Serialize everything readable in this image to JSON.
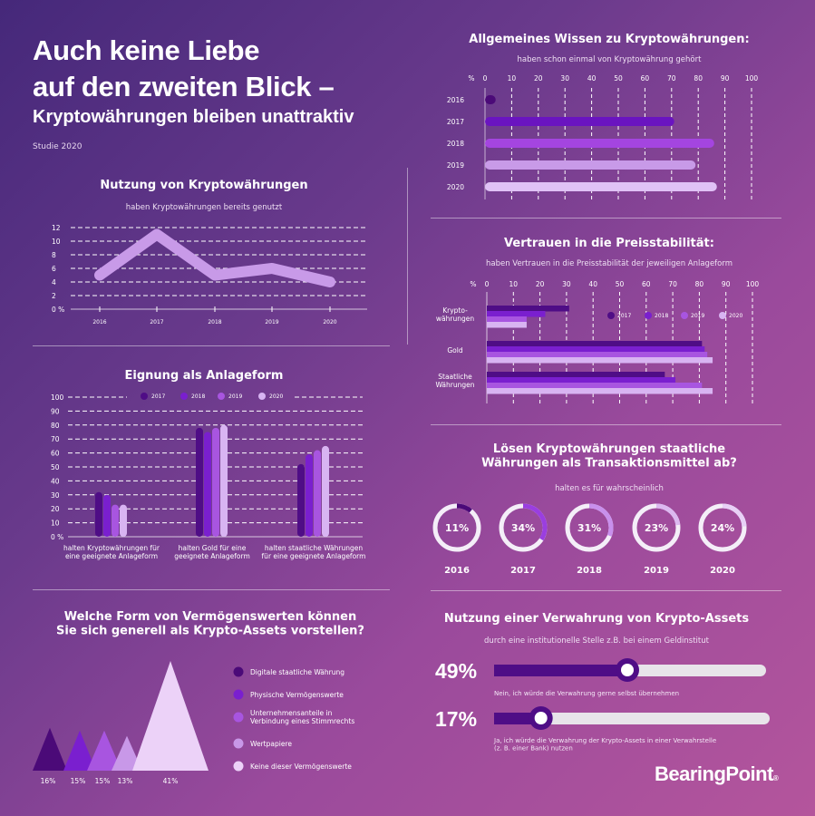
{
  "header": {
    "title_line1": "Auch keine Liebe",
    "title_line2": "auf den zweiten Blick –",
    "subtitle": "Kryptowährungen bleiben unattraktiv",
    "study": "Studie 2020"
  },
  "colors": {
    "y2016": "#4b0a78",
    "y2017": "#4f0d86",
    "y2018": "#7a1fcf",
    "y2019": "#a855e0",
    "y2020": "#d8b4f2",
    "line": "#c89ae8",
    "white": "#f4eef8"
  },
  "brand": {
    "logo": "BearingPoint"
  },
  "chart_data": [
    {
      "id": "wissen",
      "type": "bar",
      "orientation": "horizontal",
      "title": "Allgemeines Wissen zu Kryptowährungen:",
      "subtitle": "haben schon einmal von Kryptowährung gehört",
      "unit": "%",
      "categories": [
        "2016",
        "2017",
        "2018",
        "2019",
        "2020"
      ],
      "values": [
        4,
        71,
        86,
        79,
        87
      ],
      "xlim": [
        0,
        100
      ],
      "ticks": [
        0,
        10,
        20,
        30,
        40,
        50,
        60,
        70,
        80,
        90,
        100
      ],
      "grid": true
    },
    {
      "id": "vertrauen",
      "type": "bar",
      "orientation": "horizontal",
      "title": "Vertrauen in die Preisstabilität:",
      "subtitle": "haben Vertrauen in die Preisstabilität der jeweiligen Anlageform",
      "unit": "%",
      "categories": [
        "Krypto-\nwährungen",
        "Gold",
        "Staatliche\nWährungen"
      ],
      "series": [
        {
          "name": "2017",
          "values": [
            31,
            81,
            67
          ]
        },
        {
          "name": "2018",
          "values": [
            22,
            82,
            71
          ]
        },
        {
          "name": "2019",
          "values": [
            15,
            83,
            81
          ]
        },
        {
          "name": "2020",
          "values": [
            15,
            85,
            85
          ]
        }
      ],
      "xlim": [
        0,
        100
      ],
      "ticks": [
        0,
        10,
        20,
        30,
        40,
        50,
        60,
        70,
        80,
        90,
        100
      ],
      "legend": "top-right",
      "grid": true
    },
    {
      "id": "nutzung",
      "type": "line",
      "title": "Nutzung von Kryptowährungen",
      "subtitle": "haben Kryptowährungen bereits genutzt",
      "x": [
        "2016",
        "2017",
        "2018",
        "2019",
        "2020"
      ],
      "values": [
        5,
        11,
        5,
        6,
        4
      ],
      "ylim": [
        0,
        12
      ],
      "yticks": [
        "0 %",
        "2",
        "4",
        "6",
        "8",
        "10",
        "12"
      ],
      "grid": true
    },
    {
      "id": "eignung",
      "type": "bar",
      "title": "Eignung als Anlageform",
      "categories": [
        "halten Kryptowährungen für\neine geeignete Anlageform",
        "halten Gold für eine\ngeeignete Anlageform",
        "halten staatliche Währungen\nfür eine geeignete Anlageform"
      ],
      "series": [
        {
          "name": "2017",
          "values": [
            32,
            78,
            52
          ]
        },
        {
          "name": "2018",
          "values": [
            30,
            75,
            59
          ]
        },
        {
          "name": "2019",
          "values": [
            23,
            78,
            62
          ]
        },
        {
          "name": "2020",
          "values": [
            23,
            80,
            65
          ]
        }
      ],
      "ylim": [
        0,
        100
      ],
      "yticks": [
        "0 %",
        "10",
        "20",
        "30",
        "40",
        "50",
        "60",
        "70",
        "80",
        "90",
        "100"
      ],
      "legend": "top",
      "grid": true
    },
    {
      "id": "transaktion",
      "type": "pie",
      "variant": "donut",
      "title": "Lösen Kryptowährungen staatliche\nWährungen als Transaktionsmittel ab?",
      "subtitle": "halten es für wahrscheinlich",
      "categories": [
        "2016",
        "2017",
        "2018",
        "2019",
        "2020"
      ],
      "values": [
        11,
        34,
        31,
        23,
        24
      ],
      "labels": [
        "11%",
        "34%",
        "31%",
        "23%",
        "24%"
      ]
    },
    {
      "id": "assets",
      "type": "bar",
      "variant": "triangles",
      "title": "Welche Form von Vermögenswerten können\nSie sich generell als Krypto-Assets vorstellen?",
      "categories": [
        "Digitale staatliche Währung",
        "Physische Vermögenswerte",
        "Unternehmensanteile in\nVerbindung eines Stimmrechts",
        "Wertpapiere",
        "Keine dieser Vermögenswerte"
      ],
      "values": [
        16,
        15,
        15,
        13,
        41
      ],
      "labels": [
        "16%",
        "15%",
        "15%",
        "13%",
        "41%"
      ],
      "legend": "right"
    },
    {
      "id": "verwahrung",
      "type": "bar",
      "variant": "sliders",
      "title": "Nutzung einer Verwahrung von Krypto-Assets",
      "subtitle": "durch eine institutionelle Stelle z.B. bei einem Geldinstitut",
      "categories": [
        "Nein, ich würde die Verwahrung gerne selbst übernehmen",
        "Ja, ich würde die Verwahrung der Krypto-Assets in einer Verwahrstelle\n(z. B. einer Bank) nutzen"
      ],
      "values": [
        49,
        17
      ],
      "labels": [
        "49%",
        "17%"
      ]
    }
  ]
}
